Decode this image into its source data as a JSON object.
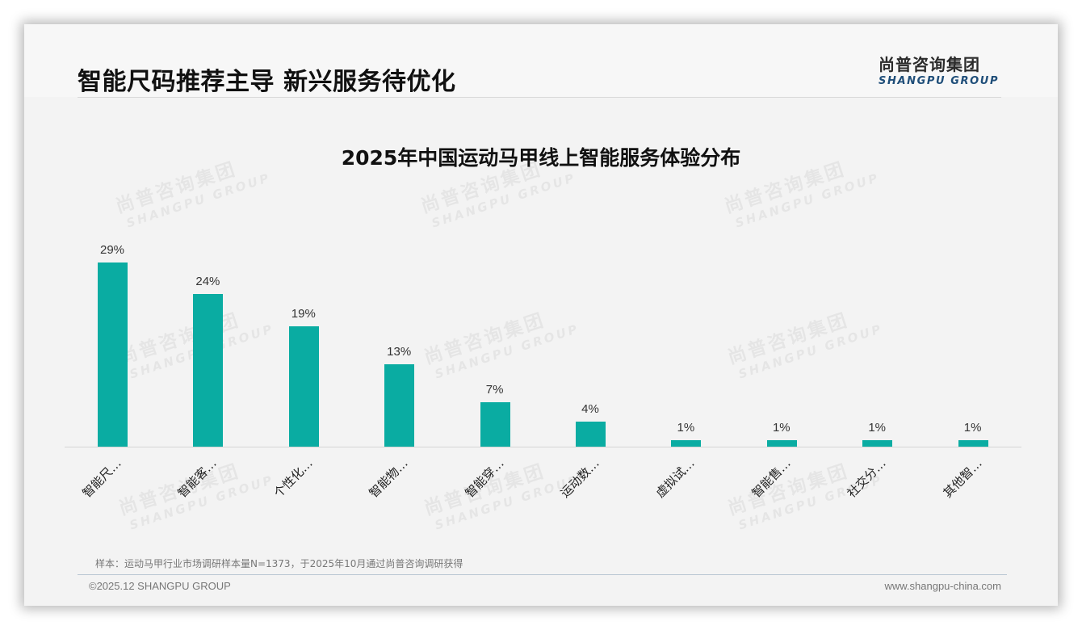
{
  "header": {
    "title": "智能尺码推荐主导 新兴服务待优化",
    "logo_cn": "尚普咨询集团",
    "logo_en": "SHANGPU GROUP"
  },
  "watermark": {
    "cn": "尚普咨询集团",
    "en": "SHANGPU GROUP"
  },
  "colors": {
    "bar": "#0aaca2",
    "logo_en": "#1f4e79",
    "background": "#f3f3f3"
  },
  "chart_data": {
    "type": "bar",
    "title": "2025年中国运动马甲线上智能服务体验分布",
    "categories": [
      "智能尺…",
      "智能客…",
      "个性化…",
      "智能物…",
      "智能穿…",
      "运动数…",
      "虚拟试…",
      "智能售…",
      "社交分…",
      "其他智…"
    ],
    "values": [
      29,
      24,
      19,
      13,
      7,
      4,
      1,
      1,
      1,
      1
    ],
    "value_labels": [
      "29%",
      "24%",
      "19%",
      "13%",
      "7%",
      "4%",
      "1%",
      "1%",
      "1%",
      "1%"
    ],
    "unit": "%",
    "xlabel": "",
    "ylabel": "",
    "ylim": [
      0,
      30
    ],
    "grid": false,
    "legend": "none",
    "axis_labels_rotated": -45
  },
  "footer": {
    "note": "样本：运动马甲行业市场调研样本量N=1373，于2025年10月通过尚普咨询调研获得",
    "copyright": "©2025.12 SHANGPU GROUP",
    "website": "www.shangpu-china.com"
  }
}
